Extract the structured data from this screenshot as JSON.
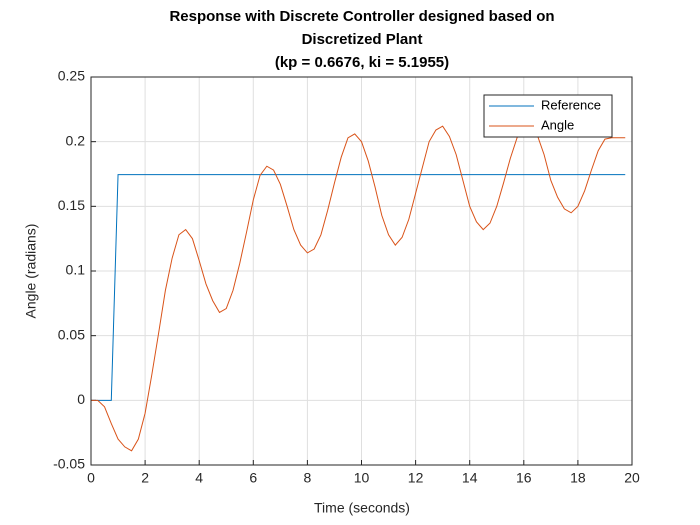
{
  "chart_data": {
    "type": "line",
    "title": [
      "Response with Discrete Controller designed based on",
      "Discretized Plant",
      "(kp = 0.6676, ki = 5.1955)"
    ],
    "x_label": "Time (seconds)",
    "y_label": "Angle (radians)",
    "xlim": [
      0,
      20
    ],
    "ylim": [
      -0.05,
      0.25
    ],
    "xticks": [
      0,
      2,
      4,
      6,
      8,
      10,
      12,
      14,
      16,
      18,
      20
    ],
    "yticks": [
      -0.05,
      0,
      0.05,
      0.1,
      0.15,
      0.2,
      0.25
    ],
    "grid": true,
    "legend": "upper right",
    "series": [
      {
        "name": "Reference",
        "color": "#0072bd",
        "x": [
          0,
          0.75,
          1,
          19.75
        ],
        "values": [
          0,
          0,
          0.1745,
          0.1745
        ]
      },
      {
        "name": "Angle",
        "color": "#d95319",
        "x": [
          0,
          0.25,
          0.5,
          0.75,
          1,
          1.25,
          1.5,
          1.75,
          2,
          2.25,
          2.5,
          2.75,
          3,
          3.25,
          3.5,
          3.75,
          4,
          4.25,
          4.5,
          4.75,
          5,
          5.25,
          5.5,
          5.75,
          6,
          6.25,
          6.5,
          6.75,
          7,
          7.25,
          7.5,
          7.75,
          8,
          8.25,
          8.5,
          8.75,
          9,
          9.25,
          9.5,
          9.75,
          10,
          10.25,
          10.5,
          10.75,
          11,
          11.25,
          11.5,
          11.75,
          12,
          12.25,
          12.5,
          12.75,
          13,
          13.25,
          13.5,
          13.75,
          14,
          14.25,
          14.5,
          14.75,
          15,
          15.25,
          15.5,
          15.75,
          16,
          16.25,
          16.5,
          16.75,
          17,
          17.25,
          17.5,
          17.75,
          18,
          18.25,
          18.5,
          18.75,
          19,
          19.25,
          19.5,
          19.75
        ],
        "values": [
          0,
          0,
          -0.005,
          -0.018,
          -0.03,
          -0.036,
          -0.039,
          -0.03,
          -0.01,
          0.02,
          0.052,
          0.085,
          0.11,
          0.128,
          0.132,
          0.125,
          0.108,
          0.09,
          0.077,
          0.068,
          0.071,
          0.085,
          0.106,
          0.13,
          0.155,
          0.174,
          0.181,
          0.178,
          0.167,
          0.15,
          0.132,
          0.12,
          0.114,
          0.117,
          0.128,
          0.147,
          0.168,
          0.188,
          0.203,
          0.206,
          0.2,
          0.185,
          0.165,
          0.143,
          0.128,
          0.12,
          0.126,
          0.14,
          0.16,
          0.18,
          0.2,
          0.209,
          0.212,
          0.204,
          0.19,
          0.17,
          0.15,
          0.138,
          0.132,
          0.137,
          0.15,
          0.168,
          0.187,
          0.203,
          0.211,
          0.212,
          0.205,
          0.19,
          0.17,
          0.157,
          0.148,
          0.145,
          0.15,
          0.162,
          0.178,
          0.193,
          0.202,
          0.203,
          0.203,
          0.203
        ]
      }
    ]
  }
}
